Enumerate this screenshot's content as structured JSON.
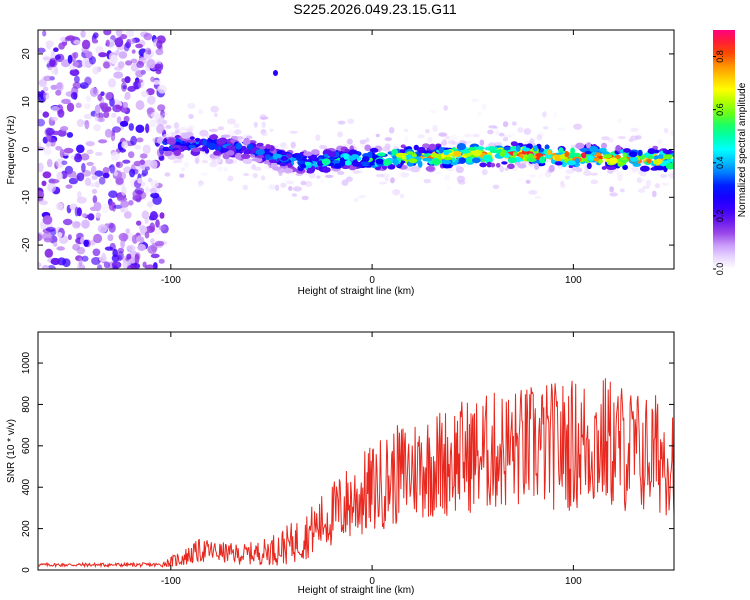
{
  "title": "S225.2026.049.23.15.G11",
  "colors": {
    "snr_line": "#e8281e",
    "colormap": [
      "#ffffff",
      "#d9b8ff",
      "#8a2be2",
      "#3b00ff",
      "#0000ff",
      "#0096ff",
      "#00ffff",
      "#00ff7f",
      "#7fff00",
      "#ffff00",
      "#ffaa00",
      "#ff3300",
      "#ff0080"
    ]
  },
  "chart_data": [
    {
      "type": "heatmap",
      "xlabel": "Height of straight line (km)",
      "ylabel": "Frequency (Hz)",
      "xlim": [
        -166,
        150
      ],
      "ylim": [
        -25,
        25
      ],
      "xticks": [
        -100,
        0,
        100
      ],
      "yticks": [
        -20,
        -10,
        0,
        10,
        20
      ],
      "colorbar": {
        "label": "Normalized spectral amplitude",
        "range": [
          0,
          0.9
        ],
        "ticks": [
          "0.0",
          "0.2",
          "0.4",
          "0.6",
          "0.8"
        ]
      },
      "ridge_center": [
        [
          -100,
          1
        ],
        [
          -80,
          1
        ],
        [
          -60,
          0
        ],
        [
          -45,
          -2
        ],
        [
          -30,
          -3
        ],
        [
          -15,
          -2
        ],
        [
          0,
          -2
        ],
        [
          15,
          -1.5
        ],
        [
          30,
          -1.5
        ],
        [
          50,
          -1
        ],
        [
          65,
          -1
        ],
        [
          80,
          -1
        ],
        [
          95,
          -1.5
        ],
        [
          110,
          -1.5
        ],
        [
          125,
          -2
        ],
        [
          140,
          -2
        ],
        [
          150,
          -2.5
        ]
      ],
      "ridge_amplitude": [
        [
          -100,
          0.35
        ],
        [
          -80,
          0.4
        ],
        [
          -60,
          0.35
        ],
        [
          -40,
          0.45
        ],
        [
          -20,
          0.5
        ],
        [
          0,
          0.6
        ],
        [
          20,
          0.75
        ],
        [
          40,
          0.8
        ],
        [
          60,
          0.85
        ],
        [
          80,
          0.85
        ],
        [
          100,
          0.85
        ],
        [
          120,
          0.85
        ],
        [
          140,
          0.8
        ],
        [
          150,
          0.75
        ]
      ],
      "noise_region_x": [
        -166,
        -103
      ]
    },
    {
      "type": "line",
      "xlabel": "Height of straight line (km)",
      "ylabel": "SNR (10 * v/v)",
      "xlim": [
        -166,
        150
      ],
      "ylim": [
        0,
        1150
      ],
      "xticks": [
        -100,
        0,
        100
      ],
      "yticks": [
        0,
        200,
        400,
        600,
        800,
        1000
      ],
      "envelope": {
        "x": [
          -166,
          -105,
          -95,
          -85,
          -75,
          -65,
          -55,
          -45,
          -35,
          -25,
          -15,
          -5,
          5,
          15,
          25,
          35,
          45,
          55,
          65,
          75,
          85,
          95,
          105,
          115,
          125,
          135,
          150
        ],
        "mean": [
          25,
          25,
          55,
          95,
          85,
          75,
          85,
          110,
          150,
          230,
          300,
          360,
          420,
          470,
          500,
          520,
          550,
          560,
          580,
          590,
          600,
          600,
          610,
          620,
          590,
          560,
          560
        ],
        "spread": [
          8,
          10,
          40,
          60,
          50,
          50,
          60,
          90,
          110,
          140,
          180,
          210,
          230,
          250,
          260,
          270,
          280,
          290,
          300,
          300,
          310,
          320,
          330,
          330,
          320,
          300,
          300
        ]
      }
    }
  ]
}
